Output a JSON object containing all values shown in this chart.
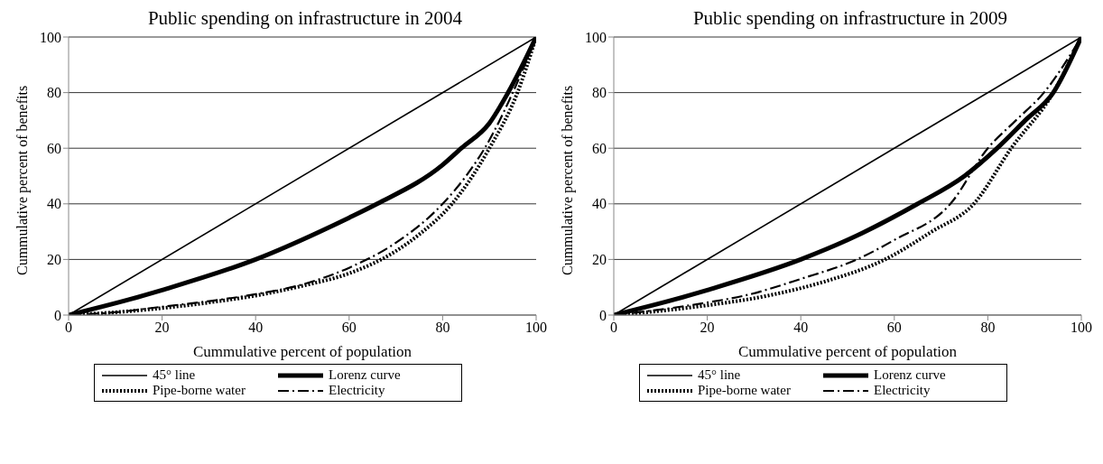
{
  "chart_data": [
    {
      "type": "line",
      "title": "Public spending on infrastructure in 2004",
      "xlabel": "Cummulative percent of population",
      "ylabel": "Cummulative percent of benefits",
      "xlim": [
        0,
        100
      ],
      "ylim": [
        0,
        100
      ],
      "xticks": [
        0,
        20,
        40,
        60,
        80,
        100
      ],
      "yticks": [
        0,
        20,
        40,
        60,
        80,
        100
      ],
      "grid": "y",
      "legend": "bottom",
      "marker": "none",
      "series": [
        {
          "name": "45° line",
          "color": "#000000",
          "line_style": "solid",
          "x": [
            0,
            100
          ],
          "values": [
            0,
            100
          ]
        },
        {
          "name": "Lorenz curve",
          "color": "#000000",
          "line_style": "solid",
          "x": [
            0,
            16,
            20,
            40,
            60,
            66,
            80,
            84,
            90,
            94,
            100
          ],
          "values": [
            0,
            7,
            9,
            20,
            35,
            40,
            54,
            60,
            69,
            80,
            100
          ]
        },
        {
          "name": "Pipe-borne water",
          "color": "#000000",
          "line_style": "dotted",
          "x": [
            0,
            10,
            20,
            30,
            40,
            50,
            60,
            70,
            75,
            82,
            90,
            96,
            100
          ],
          "values": [
            0,
            1,
            2.5,
            4.5,
            7,
            10.5,
            15,
            23,
            29,
            40,
            60,
            80,
            100
          ]
        },
        {
          "name": "Electricity",
          "color": "#000000",
          "line_style": "dashed",
          "x": [
            0,
            10,
            20,
            30,
            40,
            50,
            60,
            70,
            80,
            85,
            89,
            95,
            100
          ],
          "values": [
            0,
            1,
            3,
            5,
            7.5,
            11,
            17,
            26,
            40,
            50,
            60,
            80,
            100
          ]
        }
      ]
    },
    {
      "type": "line",
      "title": "Public spending on infrastructure in 2009",
      "xlabel": "Cummulative percent of population",
      "ylabel": "Cummulative percent of benefits",
      "xlim": [
        0,
        100
      ],
      "ylim": [
        0,
        100
      ],
      "xticks": [
        0,
        20,
        40,
        60,
        80,
        100
      ],
      "yticks": [
        0,
        20,
        40,
        60,
        80,
        100
      ],
      "grid": "y",
      "legend": "bottom",
      "marker": "none",
      "series": [
        {
          "name": "45° line",
          "color": "#000000",
          "line_style": "solid",
          "x": [
            0,
            100
          ],
          "values": [
            0,
            100
          ]
        },
        {
          "name": "Lorenz curve",
          "color": "#000000",
          "line_style": "solid",
          "x": [
            0,
            16,
            20,
            40,
            50,
            65,
            75,
            82,
            88,
            94,
            100
          ],
          "values": [
            0,
            7,
            9,
            20,
            27,
            40,
            50,
            60,
            70,
            80,
            100
          ]
        },
        {
          "name": "Pipe-borne water",
          "color": "#000000",
          "line_style": "dotted",
          "x": [
            0,
            10,
            20,
            33,
            45,
            58,
            68,
            77,
            85,
            94,
            100
          ],
          "values": [
            0,
            1.5,
            3.5,
            7,
            12,
            20,
            30,
            40,
            60,
            80,
            100
          ]
        },
        {
          "name": "Electricity",
          "color": "#000000",
          "line_style": "dashed",
          "x": [
            0,
            10,
            20,
            28,
            40,
            52,
            60,
            72,
            80,
            86,
            92,
            100
          ],
          "values": [
            0,
            2,
            4.5,
            7,
            13,
            20,
            27,
            40,
            60,
            70,
            80,
            100
          ]
        }
      ]
    }
  ]
}
